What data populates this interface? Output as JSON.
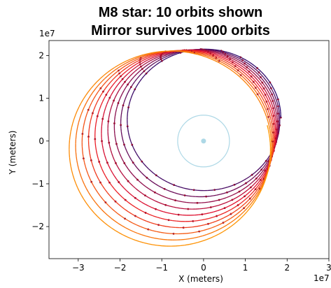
{
  "chart_data": {
    "type": "line",
    "title": "M8 star: 10 orbits shown",
    "subtitle": "Mirror survives 1000 orbits",
    "xlabel": "X (meters)",
    "ylabel": "Y (meters)",
    "x_offset_label": "1e7",
    "y_offset_label": "1e7",
    "xlim": [
      -3.7,
      3.0
    ],
    "ylim": [
      -2.75,
      2.35
    ],
    "x_ticks": [
      -3,
      -2,
      -1,
      0,
      1,
      2,
      3
    ],
    "y_ticks": [
      -2,
      -1,
      0,
      1,
      2
    ],
    "x_tick_labels": [
      "−3",
      "−2",
      "−1",
      "0",
      "1",
      "2",
      "3"
    ],
    "y_tick_labels": [
      "−2",
      "−1",
      "0",
      "1",
      "2"
    ],
    "grid": false,
    "star": {
      "x": 0,
      "y": 0,
      "color": "#add8e6"
    },
    "reference_circle": {
      "cx": 0,
      "cy": 0,
      "r": 0.62,
      "color": "#add8e6"
    },
    "orbit": {
      "name": "mirror",
      "orbits_shown": 10,
      "color_start": "#2b0a6e",
      "color_mid": "#e8102c",
      "color_end": "#ff9900",
      "marker_color": "#a0112a",
      "first_orbit": {
        "cx": 0.05,
        "cy": 0.55,
        "rx": 1.8,
        "ry": 1.6
      },
      "last_orbit": {
        "cx": -0.85,
        "cy": -0.2,
        "rx": 2.45,
        "ry": 2.3
      },
      "end_point": {
        "x": 1.45,
        "y": -1.42
      }
    }
  }
}
